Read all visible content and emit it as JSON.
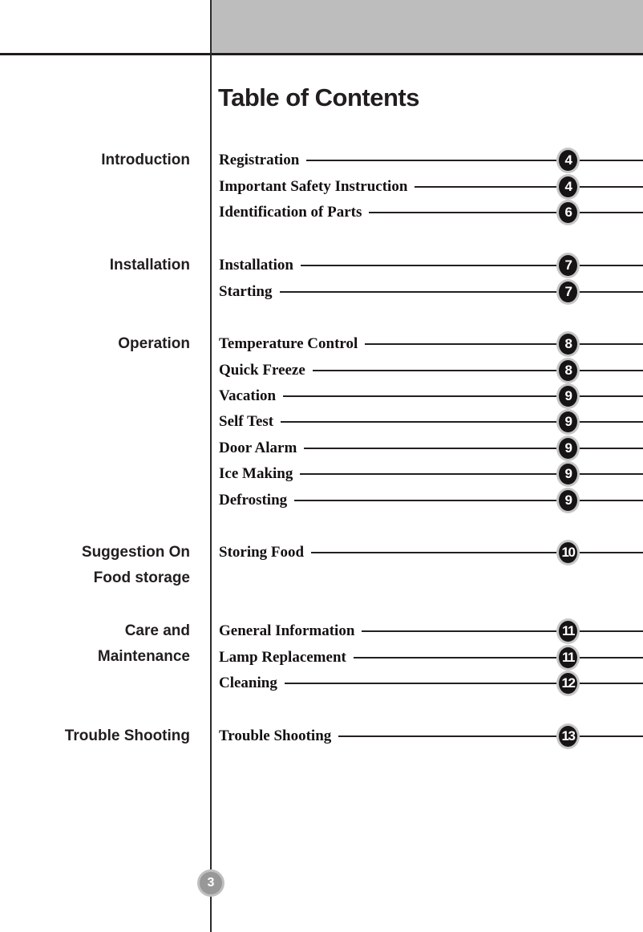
{
  "page": {
    "title": "Table of Contents",
    "current_page_number": "3"
  },
  "colors": {
    "header_bar": "#bdbdbe",
    "rule": "#231f20",
    "badge_background": "#161414",
    "badge_ring": "#c6c6c6",
    "badge_text": "#ffffff",
    "footer_circle_background": "#999899",
    "footer_circle_ring": "#bfbfbf",
    "text": "#221e1f"
  },
  "sections": [
    {
      "label_lines": [
        "Introduction"
      ],
      "entries": [
        {
          "label": "Registration",
          "page": "4"
        },
        {
          "label": "Important Safety Instruction",
          "page": "4"
        },
        {
          "label": "Identification of Parts",
          "page": "6"
        }
      ]
    },
    {
      "label_lines": [
        "Installation"
      ],
      "entries": [
        {
          "label": "Installation",
          "page": "7"
        },
        {
          "label": "Starting",
          "page": "7"
        }
      ]
    },
    {
      "label_lines": [
        "Operation"
      ],
      "entries": [
        {
          "label": "Temperature Control",
          "page": "8"
        },
        {
          "label": "Quick Freeze",
          "page": "8"
        },
        {
          "label": "Vacation",
          "page": "9"
        },
        {
          "label": "Self Test",
          "page": "9"
        },
        {
          "label": "Door Alarm",
          "page": "9"
        },
        {
          "label": "Ice Making",
          "page": "9"
        },
        {
          "label": "Defrosting",
          "page": "9"
        }
      ]
    },
    {
      "label_lines": [
        "Suggestion On",
        "Food storage"
      ],
      "entries": [
        {
          "label": "Storing Food",
          "page": "10"
        }
      ]
    },
    {
      "label_lines": [
        "Care and",
        "Maintenance"
      ],
      "entries": [
        {
          "label": "General Information",
          "page": "11"
        },
        {
          "label": "Lamp Replacement",
          "page": "11"
        },
        {
          "label": "Cleaning",
          "page": "12"
        }
      ]
    },
    {
      "label_lines": [
        "Trouble Shooting"
      ],
      "entries": [
        {
          "label": "Trouble Shooting",
          "page": "13"
        }
      ]
    }
  ]
}
